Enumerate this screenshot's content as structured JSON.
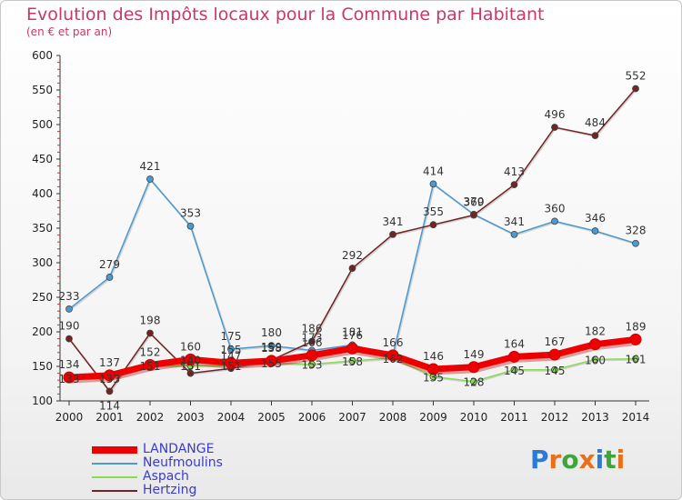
{
  "header": {
    "title": "Evolution des Impôts locaux pour la Commune par Habitant",
    "subtitle": "(en € et par an)"
  },
  "logo": {
    "text": "Proxiti"
  },
  "chart_data": {
    "type": "line",
    "title": "Evolution des Impôts locaux pour la Commune par Habitant",
    "subtitle": "(en € et par an)",
    "x": [
      "2000",
      "2001",
      "2002",
      "2003",
      "2004",
      "2005",
      "2006",
      "2007",
      "2008",
      "2009",
      "2010",
      "2011",
      "2012",
      "2013",
      "2014"
    ],
    "ylim": [
      100,
      600
    ],
    "yticks": [
      100,
      150,
      200,
      250,
      300,
      350,
      400,
      450,
      500,
      550,
      600
    ],
    "grid": false,
    "legend_position": "bottom-left",
    "series": [
      {
        "name": "LANDANGE",
        "color": "#ee0000",
        "values": [
          134,
          137,
          152,
          160,
          155,
          158,
          166,
          176,
          166,
          146,
          149,
          164,
          167,
          182,
          189
        ]
      },
      {
        "name": "Neufmoulins",
        "color": "#4a9acf",
        "values": [
          233,
          279,
          421,
          353,
          175,
          180,
          173,
          181,
          166,
          414,
          370,
          341,
          360,
          346,
          328
        ]
      },
      {
        "name": "Aspach",
        "color": "#88dd55",
        "values": [
          133,
          133,
          151,
          151,
          151,
          155,
          153,
          158,
          162,
          135,
          128,
          145,
          145,
          160,
          161
        ]
      },
      {
        "name": "Hertzing",
        "color": "#722424",
        "values": [
          190,
          114,
          198,
          140,
          147,
          159,
          186,
          292,
          341,
          355,
          369,
          413,
          496,
          484,
          552
        ]
      }
    ],
    "point_labels": {
      "LANDANGE": [
        "134",
        "137",
        "152",
        "160",
        "155",
        "158",
        "166",
        "176",
        "166",
        "146",
        "149",
        "164",
        "167",
        "182",
        "189"
      ],
      "Neufmoulins": [
        "233",
        "279",
        "421",
        "353",
        "175",
        "180",
        "173",
        "181",
        "",
        "414",
        "370",
        "341",
        "360",
        "346",
        "328"
      ],
      "Aspach": [
        "133",
        "133",
        "151",
        "151",
        "151",
        "155",
        "153",
        "158",
        "162",
        "135",
        "128",
        "145",
        "145",
        "160",
        "161"
      ],
      "Hertzing": [
        "190",
        "114",
        "198",
        "140",
        "147",
        "159",
        "186",
        "292",
        "341",
        "355",
        "369",
        "413",
        "496",
        "484",
        "552"
      ]
    }
  }
}
